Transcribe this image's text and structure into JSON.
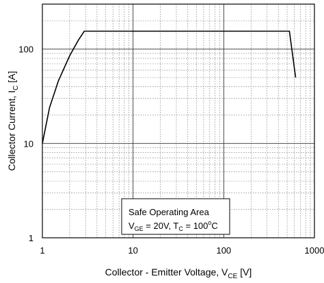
{
  "chart_data": {
    "type": "line",
    "x_scale": "log",
    "y_scale": "log",
    "xlim": [
      1,
      1000
    ],
    "ylim": [
      1,
      300
    ],
    "grid": true,
    "x_tick_labels": [
      "1",
      "10",
      "100",
      "1000"
    ],
    "y_tick_labels": [
      "1",
      "10",
      "100"
    ],
    "xlabel_main": "Collector - Emitter Voltage, V",
    "xlabel_sub": "CE",
    "xlabel_unit": " [V]",
    "ylabel_main": "Collector Current, I",
    "ylabel_sub": "C",
    "ylabel_unit": " [A]",
    "annotation": {
      "line1": "Safe Operating Area",
      "vge_label": "V",
      "vge_sub": "GE",
      "vge_value": " = 20V, T",
      "tc_sub": "C",
      "tc_value": " = 100",
      "deg_sup": "o",
      "tc_unit": "C"
    },
    "series": [
      {
        "x": [
          1,
          1.2,
          1.5,
          2,
          2.5,
          2.9,
          530,
          620
        ],
        "y": [
          10,
          24,
          46,
          85,
          125,
          155,
          155,
          50
        ]
      }
    ]
  }
}
